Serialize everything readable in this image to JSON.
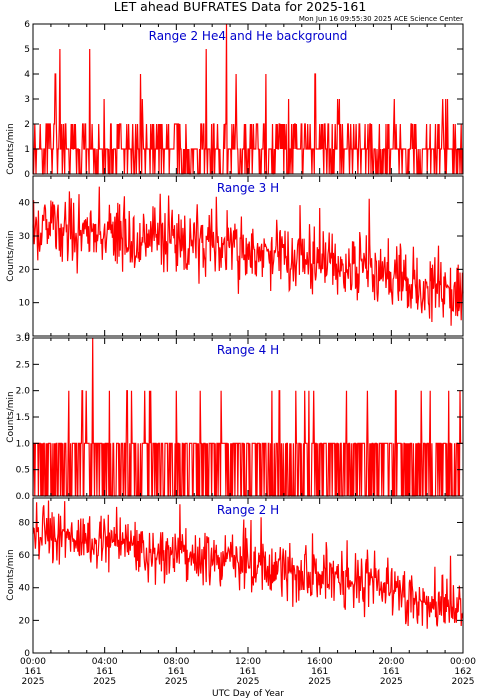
{
  "title": "LET ahead BUFRATES Data for 2025-161",
  "timestamp": "Mon Jun 16 09:55:30 2025 ACE Science Center",
  "xlabel": "UTC Day of Year",
  "x_ticks": [
    {
      "time": "00:00",
      "day": "161",
      "year": "2025"
    },
    {
      "time": "04:00",
      "day": "161",
      "year": "2025"
    },
    {
      "time": "08:00",
      "day": "161",
      "year": "2025"
    },
    {
      "time": "12:00",
      "day": "161",
      "year": "2025"
    },
    {
      "time": "16:00",
      "day": "161",
      "year": "2025"
    },
    {
      "time": "20:00",
      "day": "161",
      "year": "2025"
    },
    {
      "time": "00:00",
      "day": "162",
      "year": "2025"
    }
  ],
  "colors": {
    "series": "#ff0000",
    "label": "#0000cc",
    "axis": "#000000"
  },
  "chart_data": [
    {
      "type": "line",
      "label": "Range 2 He4 and He background",
      "ylabel": "Counts/min",
      "xlim": [
        "00:00",
        "24:00"
      ],
      "ylim": [
        0,
        6
      ],
      "yticks": [
        "0",
        "1",
        "2",
        "3",
        "4",
        "5",
        "6"
      ],
      "sampling": "1-minute counts, alternating mostly between 0, 1 and 2",
      "spikes": [
        {
          "x": "03:10",
          "y": 5
        },
        {
          "x": "01:30",
          "y": 5
        },
        {
          "x": "01:15",
          "y": 4
        },
        {
          "x": "06:00",
          "y": 4
        },
        {
          "x": "09:40",
          "y": 5
        },
        {
          "x": "10:48",
          "y": 6
        },
        {
          "x": "11:20",
          "y": 4
        },
        {
          "x": "13:00",
          "y": 4
        },
        {
          "x": "15:45",
          "y": 4
        },
        {
          "x": "17:00",
          "y": 3
        },
        {
          "x": "20:10",
          "y": 3
        }
      ],
      "baseline": {
        "start": 1,
        "end": 1
      }
    },
    {
      "type": "line",
      "label": "Range 3 H",
      "ylabel": "Counts/min",
      "xlim": [
        "00:00",
        "24:00"
      ],
      "ylim": [
        0,
        48
      ],
      "yticks": [
        "0",
        "10",
        "20",
        "30",
        "40"
      ],
      "trend": [
        {
          "x": "00:00",
          "y": 33
        },
        {
          "x": "04:00",
          "y": 31
        },
        {
          "x": "08:00",
          "y": 28
        },
        {
          "x": "12:00",
          "y": 25
        },
        {
          "x": "16:00",
          "y": 23
        },
        {
          "x": "20:00",
          "y": 18
        },
        {
          "x": "24:00",
          "y": 11
        }
      ],
      "noise": 5
    },
    {
      "type": "line",
      "label": "Range 4 H",
      "ylabel": "Counts/min",
      "xlim": [
        "00:00",
        "24:00"
      ],
      "ylim": [
        0,
        3
      ],
      "yticks": [
        "0.0",
        "0.5",
        "1.0",
        "1.5",
        "2.0",
        "2.5",
        "3.0"
      ],
      "sampling": "1-minute counts, mostly alternating between 0 and 1",
      "spikes": [
        {
          "x": "03:20",
          "y": 3
        },
        {
          "x": "02:00",
          "y": 2
        },
        {
          "x": "02:45",
          "y": 2
        },
        {
          "x": "05:15",
          "y": 2
        },
        {
          "x": "06:30",
          "y": 2
        },
        {
          "x": "08:00",
          "y": 2
        },
        {
          "x": "09:20",
          "y": 2
        },
        {
          "x": "10:30",
          "y": 2
        },
        {
          "x": "13:45",
          "y": 2
        },
        {
          "x": "15:10",
          "y": 2
        },
        {
          "x": "17:30",
          "y": 2
        },
        {
          "x": "18:40",
          "y": 2
        },
        {
          "x": "20:15",
          "y": 2
        },
        {
          "x": "22:10",
          "y": 2
        },
        {
          "x": "23:50",
          "y": 2
        }
      ],
      "baseline": {
        "start": 1,
        "end": 1
      }
    },
    {
      "type": "line",
      "label": "Range 2 H",
      "ylabel": "Counts/min",
      "xlim": [
        "00:00",
        "24:00"
      ],
      "ylim": [
        0,
        95
      ],
      "yticks": [
        "0",
        "20",
        "40",
        "60",
        "80"
      ],
      "trend": [
        {
          "x": "00:00",
          "y": 72
        },
        {
          "x": "04:00",
          "y": 68
        },
        {
          "x": "08:00",
          "y": 60
        },
        {
          "x": "12:00",
          "y": 55
        },
        {
          "x": "16:00",
          "y": 47
        },
        {
          "x": "20:00",
          "y": 40
        },
        {
          "x": "22:00",
          "y": 28
        },
        {
          "x": "24:00",
          "y": 26
        }
      ],
      "noise": 8
    }
  ]
}
